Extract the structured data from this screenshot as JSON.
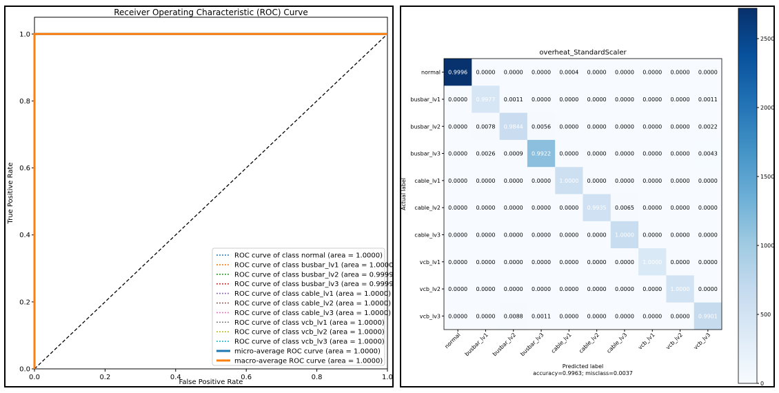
{
  "chart_data": [
    {
      "type": "line",
      "title": "Receiver Operating Characteristic (ROC) Curve",
      "xlabel": "False Positive Rate",
      "ylabel": "True Positive Rate",
      "xlim": [
        0.0,
        1.0
      ],
      "ylim": [
        0.0,
        1.05
      ],
      "xticks": [
        "0.0",
        "0.2",
        "0.4",
        "0.6",
        "0.8",
        "1.0"
      ],
      "yticks": [
        "0.0",
        "0.2",
        "0.4",
        "0.6",
        "0.8",
        "1.0"
      ],
      "legend_position": "lower-right",
      "series": [
        {
          "name": "ROC curve of class normal (area = 1.0000)",
          "color": "#1f77b4",
          "style": "dotted",
          "x": [
            0,
            0,
            1
          ],
          "y": [
            0,
            1,
            1
          ]
        },
        {
          "name": "ROC curve of class busbar_lv1 (area = 1.0000)",
          "color": "#ff7f0e",
          "style": "dotted",
          "x": [
            0,
            0,
            1
          ],
          "y": [
            0,
            1,
            1
          ]
        },
        {
          "name": "ROC curve of class busbar_lv2 (area = 0.9999)",
          "color": "#2ca02c",
          "style": "dotted",
          "x": [
            0,
            0,
            0.002,
            0.06,
            1
          ],
          "y": [
            0,
            0.97,
            1,
            1,
            1
          ]
        },
        {
          "name": "ROC curve of class busbar_lv3 (area = 0.9999)",
          "color": "#d62728",
          "style": "dotted",
          "x": [
            0,
            0,
            0.002,
            0.05,
            1
          ],
          "y": [
            0,
            0.98,
            1,
            1,
            1
          ]
        },
        {
          "name": "ROC curve of class cable_lv1 (area = 1.0000)",
          "color": "#9467bd",
          "style": "dotted",
          "x": [
            0,
            0,
            1
          ],
          "y": [
            0,
            1,
            1
          ]
        },
        {
          "name": "ROC curve of class cable_lv2 (area = 1.0000)",
          "color": "#8c564b",
          "style": "dotted",
          "x": [
            0,
            0,
            1
          ],
          "y": [
            0,
            1,
            1
          ]
        },
        {
          "name": "ROC curve of class cable_lv3 (area = 1.0000)",
          "color": "#e377c2",
          "style": "dotted",
          "x": [
            0,
            0,
            1
          ],
          "y": [
            0,
            1,
            1
          ]
        },
        {
          "name": "ROC curve of class vcb_lv1 (area = 1.0000)",
          "color": "#7f7f7f",
          "style": "dotted",
          "x": [
            0,
            0,
            1
          ],
          "y": [
            0,
            1,
            1
          ]
        },
        {
          "name": "ROC curve of class vcb_lv2 (area = 1.0000)",
          "color": "#bcbd22",
          "style": "dotted",
          "x": [
            0,
            0,
            1
          ],
          "y": [
            0,
            1,
            1
          ]
        },
        {
          "name": "ROC curve of class vcb_lv3 (area = 1.0000)",
          "color": "#17becf",
          "style": "dotted",
          "x": [
            0,
            0,
            1
          ],
          "y": [
            0,
            1,
            1
          ]
        },
        {
          "name": "micro-average ROC curve (area = 1.0000)",
          "color": "#1f77b4",
          "style": "solid",
          "x": [
            0,
            0,
            1
          ],
          "y": [
            0,
            1,
            1
          ]
        },
        {
          "name": "macro-average ROC curve (area = 1.0000)",
          "color": "#ff7f0e",
          "style": "solid",
          "x": [
            0,
            0,
            1
          ],
          "y": [
            0,
            1,
            1
          ]
        }
      ],
      "reference_line": {
        "color": "#000000",
        "style": "dashed",
        "x": [
          0,
          1
        ],
        "y": [
          0,
          1
        ]
      }
    },
    {
      "type": "heatmap",
      "title": "overheat_StandardScaler",
      "xlabel": "Predicted label",
      "ylabel": "Actual label",
      "footer": "accuracy=0.9963; misclass=0.0037",
      "labels": [
        "normal",
        "busbar_lv1",
        "busbar_lv2",
        "busbar_lv3",
        "cable_lv1",
        "cable_lv2",
        "cable_lv3",
        "vcb_lv1",
        "vcb_lv2",
        "vcb_lv3"
      ],
      "matrix": [
        [
          "0.9996",
          "0.0000",
          "0.0000",
          "0.0000",
          "0.0004",
          "0.0000",
          "0.0000",
          "0.0000",
          "0.0000",
          "0.0000"
        ],
        [
          "0.0000",
          "0.9977",
          "0.0011",
          "0.0000",
          "0.0000",
          "0.0000",
          "0.0000",
          "0.0000",
          "0.0000",
          "0.0011"
        ],
        [
          "0.0000",
          "0.0078",
          "0.9844",
          "0.0056",
          "0.0000",
          "0.0000",
          "0.0000",
          "0.0000",
          "0.0000",
          "0.0022"
        ],
        [
          "0.0000",
          "0.0026",
          "0.0009",
          "0.9922",
          "0.0000",
          "0.0000",
          "0.0000",
          "0.0000",
          "0.0000",
          "0.0043"
        ],
        [
          "0.0000",
          "0.0000",
          "0.0000",
          "0.0000",
          "1.0000",
          "0.0000",
          "0.0000",
          "0.0000",
          "0.0000",
          "0.0000"
        ],
        [
          "0.0000",
          "0.0000",
          "0.0000",
          "0.0000",
          "0.0000",
          "0.9935",
          "0.0065",
          "0.0000",
          "0.0000",
          "0.0000"
        ],
        [
          "0.0000",
          "0.0000",
          "0.0000",
          "0.0000",
          "0.0000",
          "0.0000",
          "1.0000",
          "0.0000",
          "0.0000",
          "0.0000"
        ],
        [
          "0.0000",
          "0.0000",
          "0.0000",
          "0.0000",
          "0.0000",
          "0.0000",
          "0.0000",
          "1.0000",
          "0.0000",
          "0.0000"
        ],
        [
          "0.0000",
          "0.0000",
          "0.0000",
          "0.0000",
          "0.0000",
          "0.0000",
          "0.0000",
          "0.0000",
          "1.0000",
          "0.0000"
        ],
        [
          "0.0000",
          "0.0000",
          "0.0088",
          "0.0011",
          "0.0000",
          "0.0000",
          "0.0000",
          "0.0000",
          "0.0000",
          "0.9901"
        ]
      ],
      "cell_counts_diagonal": [
        2700,
        440,
        630,
        1150,
        580,
        550,
        640,
        390,
        510,
        670
      ],
      "colorbar": {
        "min": 0,
        "max": 2720,
        "ticks": [
          "0",
          "500",
          "1000",
          "1500",
          "2000",
          "2500"
        ],
        "colormap": "Blues"
      }
    }
  ]
}
